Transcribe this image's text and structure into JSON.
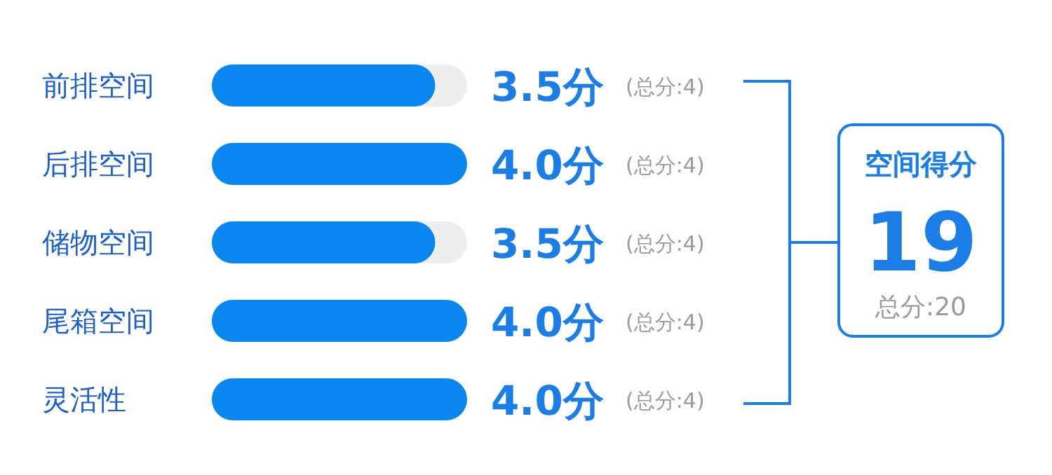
{
  "chart_data": {
    "type": "bar",
    "orientation": "horizontal",
    "categories": [
      "前排空间",
      "后排空间",
      "储物空间",
      "尾箱空间",
      "灵活性"
    ],
    "values": [
      3.5,
      4.0,
      3.5,
      4.0,
      4.0
    ],
    "value_labels": [
      "3.5分",
      "4.0分",
      "3.5分",
      "4.0分",
      "4.0分"
    ],
    "color": "#0a86f0",
    "xlim": [
      0,
      4
    ],
    "annotations": [
      "(总分:4)",
      "(总分:4)",
      "(总分:4)",
      "(总分:4)",
      "(总分:4)",
      "空间得分",
      "19",
      "总分:20"
    ]
  }
}
